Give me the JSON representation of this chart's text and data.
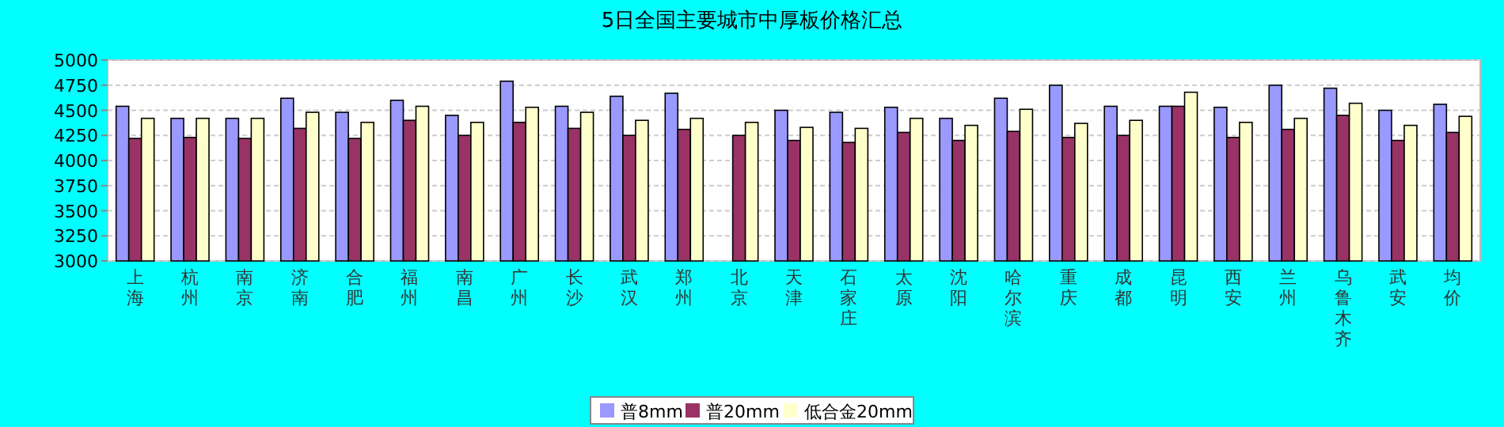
{
  "chart_data": {
    "type": "bar",
    "title": "5日全国主要城市中厚板价格汇总",
    "categories": [
      "上海",
      "杭州",
      "南京",
      "济南",
      "合肥",
      "福州",
      "南昌",
      "广州",
      "长沙",
      "武汉",
      "郑州",
      "北京",
      "天津",
      "石家庄",
      "太原",
      "沈阳",
      "哈尔滨",
      "重庆",
      "成都",
      "昆明",
      "西安",
      "兰州",
      "乌鲁木齐",
      "武安",
      "均价"
    ],
    "series": [
      {
        "name": "普8mm",
        "color": "#9999ff",
        "values": [
          4540,
          4420,
          4420,
          4620,
          4480,
          4600,
          4450,
          4790,
          4540,
          4640,
          4670,
          null,
          4500,
          4480,
          4530,
          4420,
          4620,
          4750,
          4540,
          4540,
          4530,
          4750,
          4720,
          4500,
          4560
        ]
      },
      {
        "name": "普20mm",
        "color": "#993366",
        "values": [
          4220,
          4230,
          4220,
          4320,
          4220,
          4400,
          4250,
          4380,
          4320,
          4250,
          4310,
          4250,
          4200,
          4180,
          4280,
          4200,
          4290,
          4230,
          4250,
          4540,
          4230,
          4310,
          4450,
          4200,
          4280
        ]
      },
      {
        "name": "低合金20mm",
        "color": "#ffffcc",
        "values": [
          4420,
          4420,
          4420,
          4480,
          4380,
          4540,
          4380,
          4530,
          4480,
          4400,
          4420,
          4380,
          4330,
          4320,
          4420,
          4350,
          4510,
          4370,
          4400,
          4680,
          4380,
          4420,
          4570,
          4350,
          4440
        ]
      }
    ],
    "ylim": [
      3000,
      5000
    ],
    "yticks": [
      3000,
      3250,
      3500,
      3750,
      4000,
      4250,
      4500,
      4750,
      5000
    ],
    "grid": "y",
    "legend": "bottom"
  }
}
